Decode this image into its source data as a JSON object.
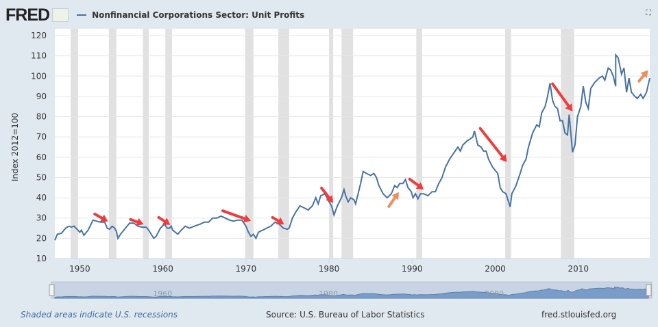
{
  "header": {
    "logo": "FRED",
    "title": "Nonfinancial Corporations Sector: Unit Profits",
    "expand_icon": "expand-icon"
  },
  "footer": {
    "recession_note": "Shaded areas indicate U.S. recessions",
    "source": "Source: U.S. Bureau of Labor Statistics",
    "site": "fred.stlouisfed.org"
  },
  "navigator": {
    "labels": [
      "1960",
      "1980",
      "2000"
    ]
  },
  "colors": {
    "line": "#4572a7",
    "recession": "#e1e1e1",
    "arrow_red": "#f03c3c",
    "arrow_orange": "#f08c5a"
  },
  "chart_data": {
    "type": "line",
    "title": "Nonfinancial Corporations Sector: Unit Profits",
    "ylabel": "Index 2012=100",
    "xlabel": "",
    "xlim": [
      1947,
      2018.6
    ],
    "ylim": [
      10,
      120
    ],
    "yticks": [
      10,
      20,
      30,
      40,
      50,
      60,
      70,
      80,
      90,
      100,
      110,
      120
    ],
    "xticks": [
      1950,
      1960,
      1970,
      1980,
      1990,
      2000,
      2010
    ],
    "grid": true,
    "recessions": [
      [
        1948.9,
        1949.8
      ],
      [
        1953.5,
        1954.4
      ],
      [
        1957.6,
        1958.3
      ],
      [
        1960.3,
        1961.1
      ],
      [
        1969.9,
        1970.9
      ],
      [
        1973.9,
        1975.2
      ],
      [
        1980.0,
        1980.5
      ],
      [
        1981.5,
        1982.9
      ],
      [
        1990.5,
        1991.2
      ],
      [
        2001.2,
        2001.9
      ],
      [
        2007.9,
        2009.5
      ]
    ],
    "series": [
      {
        "name": "Nonfinancial Corporations Sector: Unit Profits",
        "points": [
          [
            1947,
            19
          ],
          [
            1947.3,
            22
          ],
          [
            1947.8,
            22.5
          ],
          [
            1948.3,
            25
          ],
          [
            1948.7,
            26
          ],
          [
            1949,
            25.5
          ],
          [
            1949.3,
            26
          ],
          [
            1949.8,
            24
          ],
          [
            1950,
            23
          ],
          [
            1950.2,
            24
          ],
          [
            1950.5,
            21.5
          ],
          [
            1951,
            24
          ],
          [
            1951.6,
            29
          ],
          [
            1952,
            28.5
          ],
          [
            1952.5,
            28
          ],
          [
            1953,
            28
          ],
          [
            1953.3,
            25
          ],
          [
            1953.6,
            24.5
          ],
          [
            1953.9,
            26
          ],
          [
            1954.2,
            25
          ],
          [
            1954.4,
            23.5
          ],
          [
            1954.6,
            20
          ],
          [
            1954.9,
            22
          ],
          [
            1955.5,
            25
          ],
          [
            1956,
            27.5
          ],
          [
            1956.5,
            27.5
          ],
          [
            1957,
            26
          ],
          [
            1957.5,
            25.5
          ],
          [
            1958,
            25.5
          ],
          [
            1958.3,
            24
          ],
          [
            1958.6,
            22
          ],
          [
            1958.9,
            20
          ],
          [
            1959.2,
            21
          ],
          [
            1959.7,
            25
          ],
          [
            1960.2,
            27
          ],
          [
            1960.5,
            25
          ],
          [
            1960.8,
            25
          ],
          [
            1961,
            26
          ],
          [
            1961.2,
            24
          ],
          [
            1961.8,
            22
          ],
          [
            1962.2,
            24
          ],
          [
            1962.7,
            26
          ],
          [
            1963.2,
            25
          ],
          [
            1963.8,
            26
          ],
          [
            1964.5,
            27
          ],
          [
            1965,
            28
          ],
          [
            1965.5,
            28
          ],
          [
            1966,
            30
          ],
          [
            1966.5,
            30
          ],
          [
            1967,
            31
          ],
          [
            1967.5,
            30
          ],
          [
            1968,
            29
          ],
          [
            1968.5,
            28.5
          ],
          [
            1969,
            29
          ],
          [
            1969.5,
            29
          ],
          [
            1970,
            26
          ],
          [
            1970.3,
            23
          ],
          [
            1970.6,
            21
          ],
          [
            1970.9,
            22
          ],
          [
            1971.2,
            20
          ],
          [
            1971.5,
            23
          ],
          [
            1972,
            24
          ],
          [
            1972.5,
            25
          ],
          [
            1973,
            26
          ],
          [
            1973.5,
            28
          ],
          [
            1974,
            27
          ],
          [
            1974.5,
            25
          ],
          [
            1975,
            24.5
          ],
          [
            1975.2,
            25
          ],
          [
            1975.6,
            30
          ],
          [
            1976,
            33
          ],
          [
            1976.5,
            36
          ],
          [
            1977,
            35
          ],
          [
            1977.5,
            34
          ],
          [
            1978,
            36
          ],
          [
            1978.4,
            40
          ],
          [
            1978.7,
            37
          ],
          [
            1979,
            41
          ],
          [
            1979.5,
            42
          ],
          [
            1980,
            38
          ],
          [
            1980.3,
            36
          ],
          [
            1980.6,
            31.5
          ],
          [
            1981,
            36
          ],
          [
            1981.5,
            40
          ],
          [
            1981.8,
            44
          ],
          [
            1982,
            41
          ],
          [
            1982.3,
            38
          ],
          [
            1982.6,
            40
          ],
          [
            1983,
            39
          ],
          [
            1983.2,
            37
          ],
          [
            1983.5,
            42
          ],
          [
            1983.8,
            47
          ],
          [
            1984.1,
            53
          ],
          [
            1984.5,
            52
          ],
          [
            1985,
            51
          ],
          [
            1985.4,
            52
          ],
          [
            1985.7,
            50
          ],
          [
            1986,
            46
          ],
          [
            1986.5,
            42
          ],
          [
            1987,
            40
          ],
          [
            1987.5,
            42
          ],
          [
            1987.9,
            46
          ],
          [
            1988.2,
            45
          ],
          [
            1988.5,
            47
          ],
          [
            1988.9,
            47
          ],
          [
            1989.2,
            49
          ],
          [
            1989.5,
            45
          ],
          [
            1989.9,
            43
          ],
          [
            1990.1,
            40
          ],
          [
            1990.4,
            42
          ],
          [
            1990.7,
            39.5
          ],
          [
            1991,
            42
          ],
          [
            1991.4,
            42
          ],
          [
            1991.9,
            41
          ],
          [
            1992.4,
            43
          ],
          [
            1992.8,
            43
          ],
          [
            1993.2,
            47
          ],
          [
            1993.6,
            50
          ],
          [
            1994,
            55
          ],
          [
            1994.5,
            59
          ],
          [
            1995,
            62
          ],
          [
            1995.5,
            65
          ],
          [
            1995.8,
            63
          ],
          [
            1996.1,
            66
          ],
          [
            1996.6,
            68
          ],
          [
            1997,
            69
          ],
          [
            1997.3,
            70
          ],
          [
            1997.5,
            73
          ],
          [
            1997.9,
            66
          ],
          [
            1998.3,
            65
          ],
          [
            1998.6,
            63
          ],
          [
            1998.9,
            63
          ],
          [
            1999.2,
            59
          ],
          [
            1999.7,
            55
          ],
          [
            2000.3,
            52
          ],
          [
            2000.6,
            45
          ],
          [
            2000.9,
            43
          ],
          [
            2001.3,
            42
          ],
          [
            2001.8,
            35.5
          ],
          [
            2002,
            42
          ],
          [
            2002.5,
            46
          ],
          [
            2003,
            52
          ],
          [
            2003.3,
            56
          ],
          [
            2003.7,
            59
          ],
          [
            2004,
            65
          ],
          [
            2004.5,
            72
          ],
          [
            2005,
            76
          ],
          [
            2005.3,
            75
          ],
          [
            2005.6,
            82
          ],
          [
            2006,
            85
          ],
          [
            2006.3,
            90
          ],
          [
            2006.6,
            96.5
          ],
          [
            2006.9,
            88
          ],
          [
            2007.2,
            85
          ],
          [
            2007.5,
            84
          ],
          [
            2007.8,
            78
          ],
          [
            2008.1,
            78
          ],
          [
            2008.4,
            72
          ],
          [
            2008.7,
            71
          ],
          [
            2008.9,
            81
          ],
          [
            2009.1,
            72
          ],
          [
            2009.3,
            62.5
          ],
          [
            2009.6,
            66
          ],
          [
            2009.9,
            80
          ],
          [
            2010.3,
            85
          ],
          [
            2010.6,
            95
          ],
          [
            2010.9,
            87
          ],
          [
            2011.2,
            84
          ],
          [
            2011.5,
            94
          ],
          [
            2012,
            97
          ],
          [
            2012.5,
            99
          ],
          [
            2012.9,
            100
          ],
          [
            2013.2,
            98
          ],
          [
            2013.6,
            104
          ],
          [
            2013.9,
            103
          ],
          [
            2014.2,
            100
          ],
          [
            2014.5,
            95
          ],
          [
            2014.5,
            110.5
          ],
          [
            2014.8,
            109
          ],
          [
            2015.2,
            101
          ],
          [
            2015.5,
            104
          ],
          [
            2015.8,
            92
          ],
          [
            2016.1,
            99
          ],
          [
            2016.4,
            92
          ],
          [
            2016.8,
            90
          ],
          [
            2017.1,
            89
          ],
          [
            2017.5,
            91
          ],
          [
            2017.8,
            89
          ],
          [
            2018.2,
            92
          ],
          [
            2018.6,
            99
          ]
        ]
      }
    ],
    "annotations": [
      {
        "type": "arrow",
        "color": "red",
        "from": [
          1951.8,
          32
        ],
        "to": [
          1953.4,
          28.3
        ]
      },
      {
        "type": "arrow",
        "color": "red",
        "from": [
          1956.1,
          29.3
        ],
        "to": [
          1957.7,
          26.9
        ]
      },
      {
        "type": "arrow",
        "color": "red",
        "from": [
          1959.5,
          30.3
        ],
        "to": [
          1960.9,
          26.6
        ]
      },
      {
        "type": "arrow",
        "color": "red",
        "from": [
          1967.2,
          33.6
        ],
        "to": [
          1970.6,
          28.6
        ]
      },
      {
        "type": "arrow",
        "color": "red",
        "from": [
          1973.2,
          30.3
        ],
        "to": [
          1974.6,
          26.9
        ]
      },
      {
        "type": "arrow",
        "color": "red",
        "from": [
          1979.1,
          44.8
        ],
        "to": [
          1980.5,
          37.4
        ]
      },
      {
        "type": "arrow",
        "color": "orange",
        "from": [
          1987.2,
          35.7
        ],
        "to": [
          1988.4,
          42.8
        ]
      },
      {
        "type": "arrow",
        "color": "red",
        "from": [
          1989.7,
          49.2
        ],
        "to": [
          1991.4,
          44.1
        ]
      },
      {
        "type": "arrow",
        "color": "red",
        "from": [
          1998.2,
          74.2
        ],
        "to": [
          2001.4,
          57.6
        ]
      },
      {
        "type": "arrow",
        "color": "red",
        "from": [
          2006.9,
          96.2
        ],
        "to": [
          2009.3,
          82.6
        ]
      },
      {
        "type": "arrow",
        "color": "orange",
        "from": [
          2017.3,
          97.5
        ],
        "to": [
          2018.4,
          102.9
        ]
      }
    ]
  }
}
